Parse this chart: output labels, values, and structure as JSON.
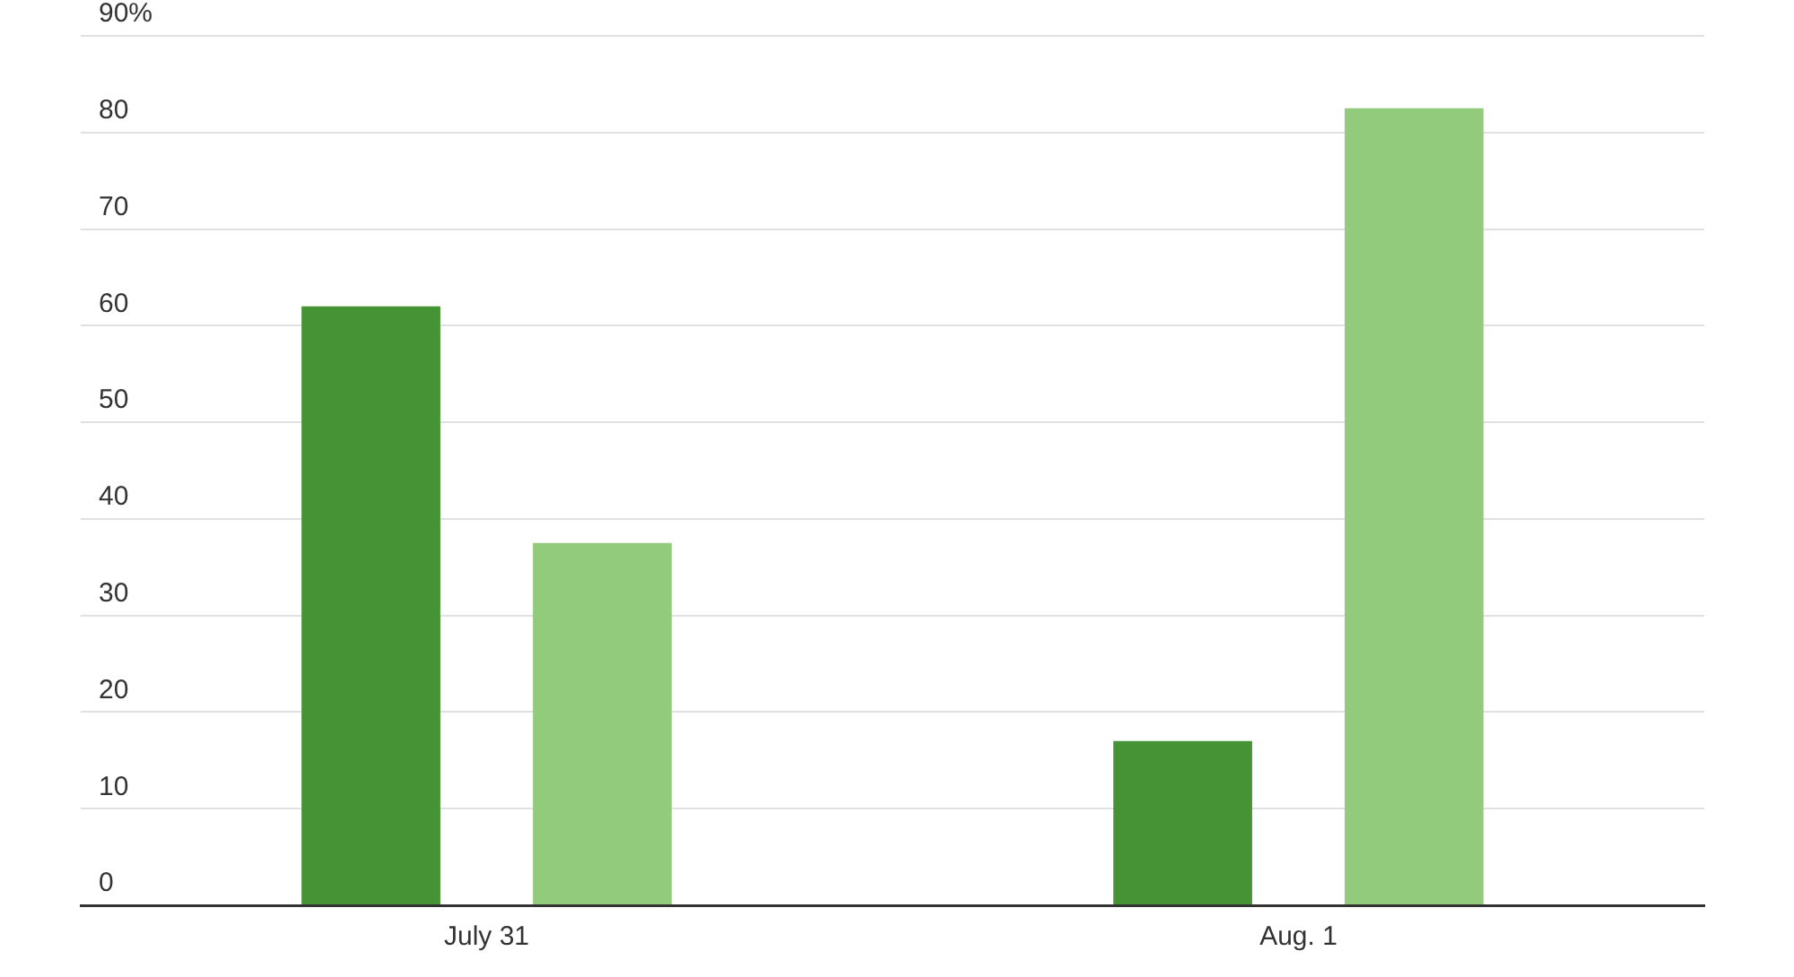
{
  "chart_data": {
    "type": "bar",
    "categories": [
      "July 31",
      "Aug. 1"
    ],
    "series": [
      {
        "color": "#459334",
        "values": [
          62,
          17
        ]
      },
      {
        "color": "#93cb7d",
        "values": [
          37.5,
          82.5
        ]
      }
    ],
    "ylim": [
      0,
      90
    ],
    "yticks": [
      0,
      10,
      20,
      30,
      40,
      50,
      60,
      70,
      80,
      {
        "value": 90,
        "label": "90%"
      }
    ],
    "grid": "y",
    "legend": false
  }
}
